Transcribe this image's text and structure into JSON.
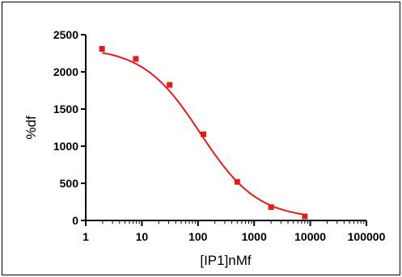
{
  "chart_data": {
    "type": "scatter",
    "xscale": "log",
    "xlabel": "[IP1]nMf",
    "ylabel": "%df",
    "xlim": [
      1,
      100000
    ],
    "ylim": [
      0,
      2500
    ],
    "x_ticks": [
      1,
      10,
      100,
      1000,
      10000,
      100000
    ],
    "x_tick_labels": [
      "1",
      "10",
      "100",
      "1000",
      "10000",
      "100000"
    ],
    "y_ticks": [
      0,
      500,
      1000,
      1500,
      2000,
      2500
    ],
    "y_tick_labels": [
      "0",
      "500",
      "1000",
      "1500",
      "2000",
      "2500"
    ],
    "grid": false,
    "series": [
      {
        "color": "#e31b1b",
        "marker": "square",
        "fit": "sigmoidal-curve",
        "x": [
          1.95,
          7.8,
          31.25,
          125,
          500,
          2000,
          8000
        ],
        "y": [
          2310,
          2175,
          1825,
          1160,
          520,
          180,
          55
        ]
      }
    ],
    "fit_curve": {
      "top": 2330,
      "bottom": 20,
      "ec50": 110,
      "hill_slope": 0.85
    }
  }
}
